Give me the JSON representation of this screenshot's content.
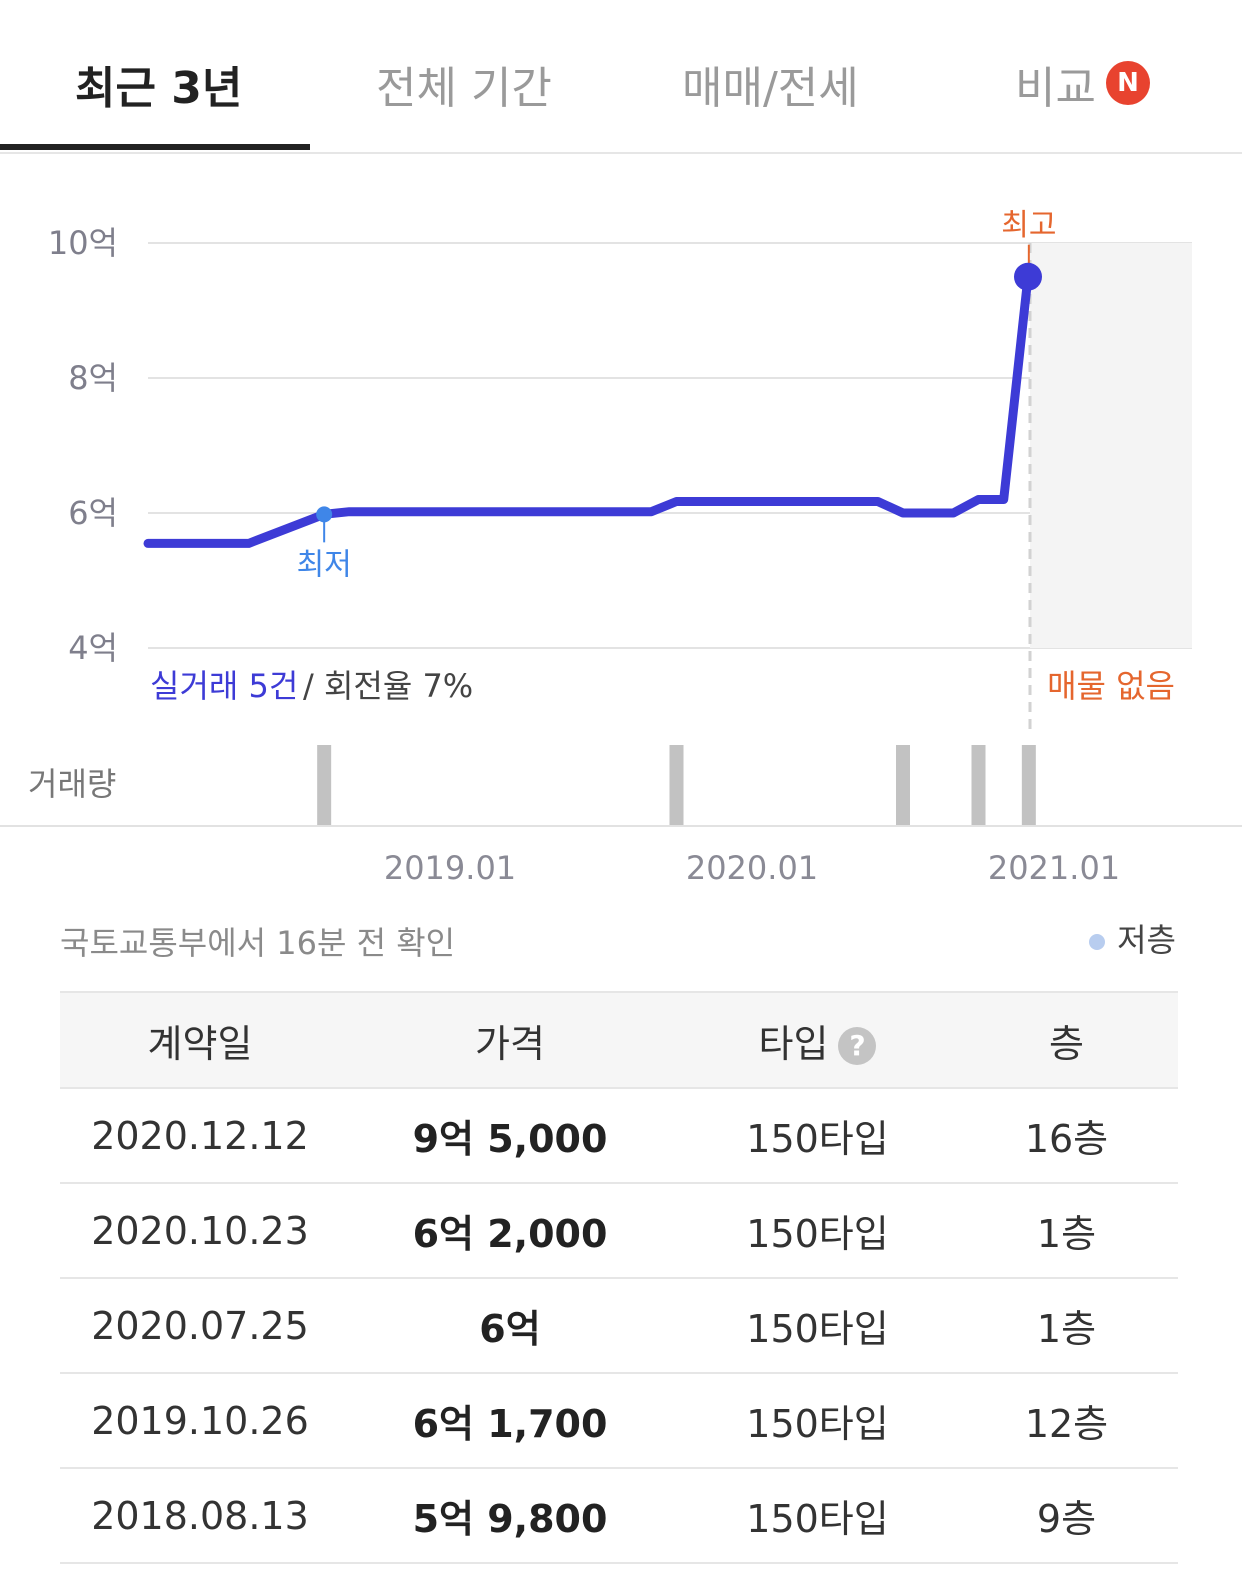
{
  "tabs": [
    {
      "label": "최근 3년",
      "active": true
    },
    {
      "label": "전체 기간",
      "active": false
    },
    {
      "label": "매매/전세",
      "active": false
    },
    {
      "label": "비교",
      "active": false,
      "badge": "N"
    }
  ],
  "chart": {
    "summary_count": "실거래 5건",
    "summary_rest": "/ 회전율 7%",
    "no_listing": "매물 없음",
    "volume_label": "거래량",
    "low_label": "최저",
    "high_label": "최고"
  },
  "chart_data": {
    "type": "line",
    "ylabel_ticks": [
      "10억",
      "8억",
      "6억",
      "4억"
    ],
    "y_tick_values": [
      10,
      8,
      6,
      4
    ],
    "ylim": [
      4,
      10
    ],
    "x_tick_labels": [
      "2019.01",
      "2020.01",
      "2021.01"
    ],
    "series": [
      {
        "x": [
          "2018.01",
          "2018.05",
          "2018.08",
          "2018.09",
          "2019.01",
          "2019.06",
          "2019.09",
          "2019.10",
          "2019.12",
          "2020.01",
          "2020.06",
          "2020.07",
          "2020.08",
          "2020.09",
          "2020.10",
          "2020.11",
          "2020.12",
          "2021.01"
        ],
        "values": [
          5.55,
          5.55,
          5.98,
          6.02,
          6.02,
          6.02,
          6.02,
          6.17,
          6.17,
          6.17,
          6.17,
          6.0,
          6.0,
          6.0,
          6.2,
          6.2,
          9.5,
          9.5
        ]
      }
    ],
    "low_point": {
      "x": "2018.08",
      "value": 5.98
    },
    "high_point": {
      "x": "2020.12",
      "value": 9.5
    },
    "volume_dates": [
      "2018.08",
      "2019.10",
      "2020.07",
      "2020.10",
      "2020.12"
    ],
    "grid": true
  },
  "colors": {
    "line": "#3d3bd6",
    "low": "#3f86e8",
    "high": "#e5662e",
    "volume": "#c2c2c2",
    "badge": "#e8432f"
  },
  "source_text": "국토교통부에서 16분 전 확인",
  "legend_label": "저층",
  "table": {
    "headers": [
      "계약일",
      "가격",
      "타입",
      "층"
    ],
    "help_icon": "?",
    "rows": [
      {
        "date": "2020.12.12",
        "price": "9억 5,000",
        "type": "150타입",
        "floor": "16층"
      },
      {
        "date": "2020.10.23",
        "price": "6억 2,000",
        "type": "150타입",
        "floor": "1층"
      },
      {
        "date": "2020.07.25",
        "price": "6억",
        "type": "150타입",
        "floor": "1층"
      },
      {
        "date": "2019.10.26",
        "price": "6억 1,700",
        "type": "150타입",
        "floor": "12층"
      },
      {
        "date": "2018.08.13",
        "price": "5억 9,800",
        "type": "150타입",
        "floor": "9층"
      }
    ]
  }
}
